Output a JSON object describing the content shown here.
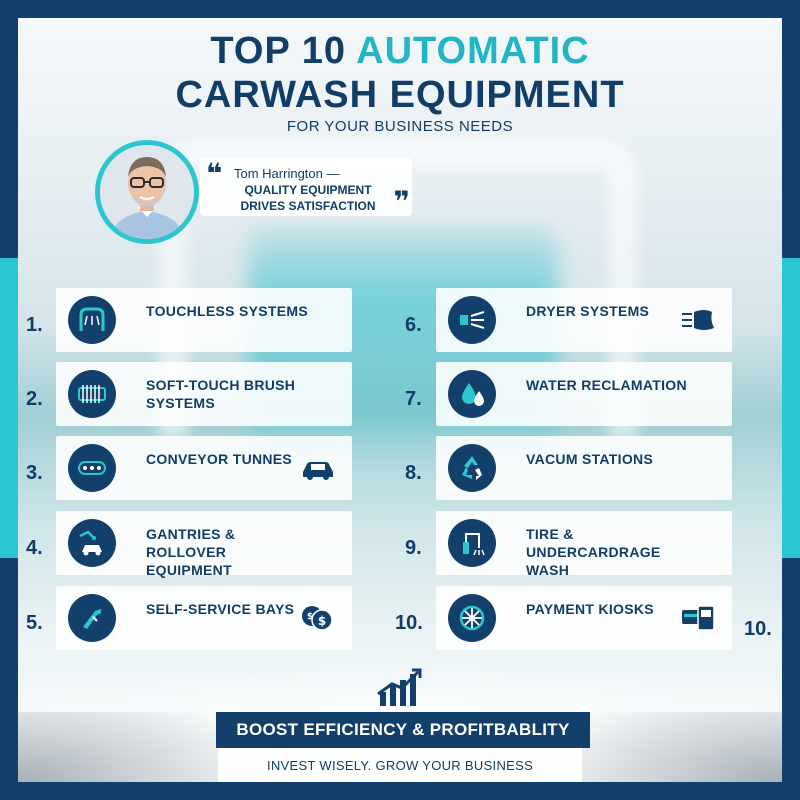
{
  "header": {
    "title_line1_word1": "TOP 10",
    "title_line1_word2": "AUTOMATIC",
    "title_line2": "CARWASH EQUIPMENT",
    "subtitle": "FOR YOUR BUSINESS NEEDS"
  },
  "quote": {
    "author": "Tom Harrington —",
    "text": "QUALITY EQUIPMENT DRIVES SATISFACTION",
    "open_mark": "❝",
    "close_mark": "❞"
  },
  "left_items": [
    {
      "number": "1.",
      "label": "TOUCHLESS SYSTEMS",
      "icon": "touchless-arch-icon"
    },
    {
      "number": "2.",
      "label": "SOFT-TOUCH BRUSH SYSTEMS",
      "icon": "brush-roller-icon"
    },
    {
      "number": "3.",
      "label": "CONVEYOR TUNNES",
      "icon": "conveyor-icon",
      "extra_icon": "car-icon"
    },
    {
      "number": "4.",
      "label": "GANTRIES & ROLLOVER EQUIPMENT",
      "icon": "gantry-car-icon"
    },
    {
      "number": "5.",
      "label": "SELF-SERVICE BAYS",
      "icon": "spray-gun-icon",
      "extra_icon": "coins-icon"
    }
  ],
  "right_items": [
    {
      "number": "6.",
      "label": "DRYER SYSTEMS",
      "icon": "dryer-icon",
      "extra_icon": "blower-icon"
    },
    {
      "number": "7.",
      "label": "WATER RECLAMATION",
      "icon": "water-drops-icon"
    },
    {
      "number": "8.",
      "label": "VACUM STATIONS",
      "icon": "recycle-icon"
    },
    {
      "number": "9.",
      "label": "TIRE & UNDERCARDRAGE WASH",
      "icon": "wand-icon"
    },
    {
      "number": "10.",
      "label": "PAYMENT KIOSKS",
      "icon": "wheel-icon",
      "extra_icon": "card-reader-icon"
    }
  ],
  "extra_number": "10.",
  "cta": "BOOST EFFICIENCY & PROFITBABLITY",
  "footer": "INVEST WISELY. GROW YOUR BUSINESS",
  "colors": {
    "navy": "#13406b",
    "teal": "#2cc6cf",
    "accent_text": "#22b5c4"
  }
}
